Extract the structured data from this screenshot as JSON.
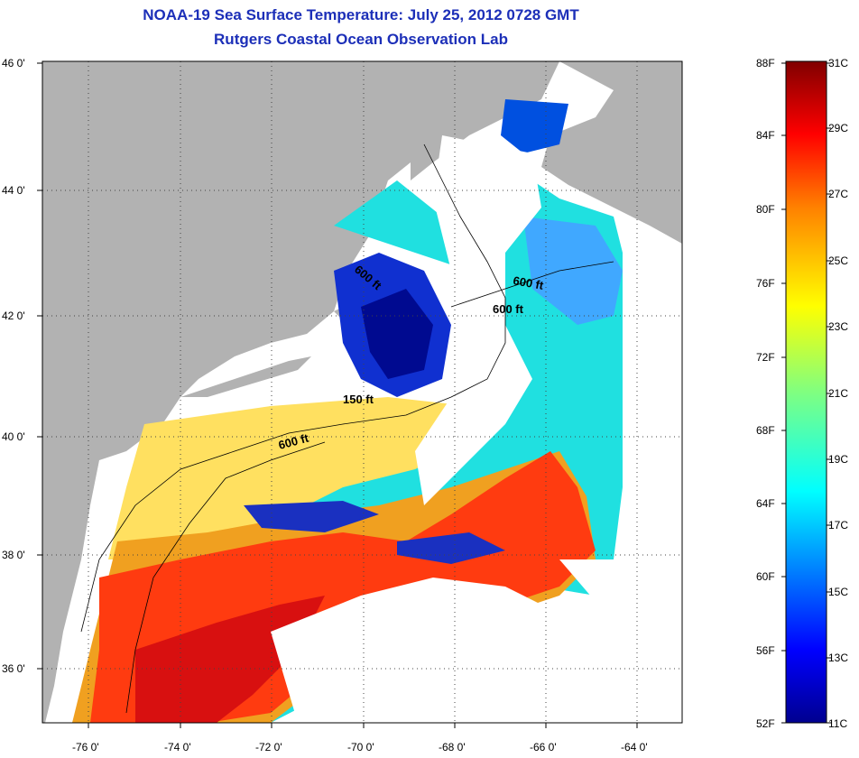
{
  "header": {
    "title": "NOAA-19 Sea Surface Temperature:  July 25, 2012 0728 GMT",
    "subtitle": "Rutgers Coastal Ocean Observation Lab"
  },
  "map": {
    "lat_range": [
      35,
      46
    ],
    "lon_range": [
      -77,
      -63
    ],
    "lat_ticks": [
      "46 0'",
      "44 0'",
      "42 0'",
      "40 0'",
      "38 0'",
      "36 0'"
    ],
    "lon_ticks": [
      "-76 0'",
      "-74 0'",
      "-72 0'",
      "-70 0'",
      "-68 0'",
      "-66 0'",
      "-64 0'"
    ],
    "land_color": "#b2b2b2",
    "cloud_color": "#ffffff",
    "contour_labels": [
      "600 ft",
      "600 ft",
      "600 ft",
      "150 ft",
      "600 ft"
    ]
  },
  "colorbar": {
    "fahrenheit_labels": [
      "88F",
      "84F",
      "80F",
      "76F",
      "72F",
      "68F",
      "64F",
      "60F",
      "56F",
      "52F"
    ],
    "celsius_labels": [
      "31C",
      "29C",
      "27C",
      "25C",
      "23C",
      "21C",
      "19C",
      "17C",
      "15C",
      "13C",
      "11C"
    ],
    "range_c": [
      11,
      31
    ],
    "colors": [
      "#00008f",
      "#0000ff",
      "#0080ff",
      "#00ffff",
      "#80ff80",
      "#ffff00",
      "#ff8000",
      "#ff0000",
      "#800000"
    ]
  }
}
